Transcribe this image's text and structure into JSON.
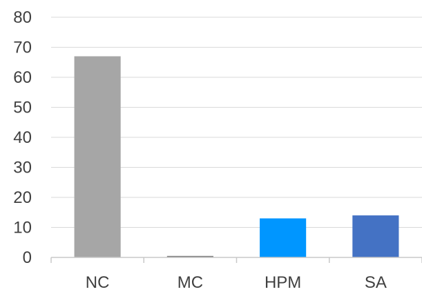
{
  "chart_data": {
    "type": "bar",
    "title": "",
    "xlabel": "",
    "ylabel": "",
    "categories": [
      "NC",
      "MC",
      "HPM",
      "SA"
    ],
    "values": [
      67,
      0.5,
      13,
      14
    ],
    "bar_colors": [
      "#a6a6a6",
      "#7f7f7f",
      "#0096ff",
      "#4472c4"
    ],
    "ylim": [
      0,
      80
    ],
    "yticks": [
      "0",
      "10",
      "20",
      "30",
      "40",
      "50",
      "60",
      "70",
      "80"
    ],
    "grid": true,
    "legend": "none"
  }
}
